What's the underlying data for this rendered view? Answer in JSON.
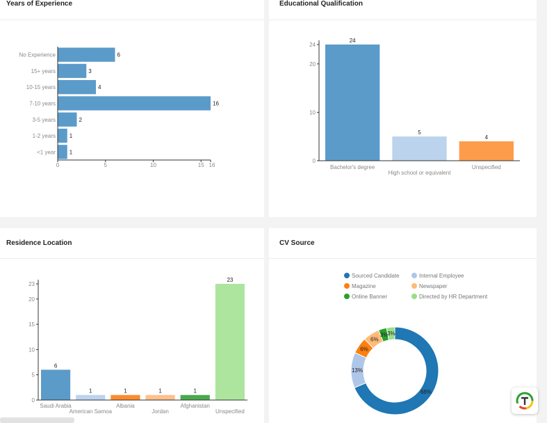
{
  "cards": {
    "experience": {
      "title": "Years of Experience"
    },
    "education": {
      "title": "Educational Qualification"
    },
    "residence": {
      "title": "Residence Location"
    },
    "cvsource": {
      "title": "CV Source"
    }
  },
  "chart_data": [
    {
      "id": "experience",
      "type": "bar",
      "orientation": "horizontal",
      "title": "Years of Experience",
      "categories": [
        "No Experience",
        "15+ years",
        "10-15 years",
        "7-10 years",
        "3-5 years",
        "1-2 years",
        "<1 year"
      ],
      "values": [
        6,
        3,
        4,
        16,
        2,
        1,
        1
      ],
      "value_labels": [
        "6",
        "3",
        "4",
        "16",
        "2",
        "1",
        "1"
      ],
      "xlim": [
        0,
        16
      ],
      "ticks": [
        0,
        5,
        10,
        15,
        16
      ],
      "tick_labels": [
        "0",
        "5",
        "10",
        "15",
        "16"
      ],
      "color": "#5b9bc9"
    },
    {
      "id": "education",
      "type": "bar",
      "title": "Educational Qualification",
      "categories": [
        "Bachelor's degree",
        "High school or equivalent",
        "Unspecified"
      ],
      "values": [
        24,
        5,
        4
      ],
      "value_labels": [
        "24",
        "5",
        "4"
      ],
      "colors": [
        "#5b9bc9",
        "#bcd3ee",
        "#fd9c4a"
      ],
      "ylim": [
        0,
        24
      ],
      "ticks": [
        0,
        10,
        20,
        24
      ],
      "tick_labels": [
        "0",
        "10",
        "20",
        "24"
      ]
    },
    {
      "id": "residence",
      "type": "bar",
      "title": "Residence Location",
      "categories": [
        "Saudi Arabia",
        "American Samoa",
        "Albania",
        "Jordan",
        "Afghanistan",
        "Unspecified"
      ],
      "values": [
        6,
        1,
        1,
        1,
        1,
        23
      ],
      "value_labels": [
        "6",
        "1",
        "1",
        "1",
        "1",
        "23"
      ],
      "colors": [
        "#5b9bc9",
        "#bcd3ee",
        "#fd8b2d",
        "#fdc08e",
        "#4aa94d",
        "#ade59f"
      ],
      "ylim": [
        0,
        23
      ],
      "ticks": [
        0,
        5,
        10,
        15,
        20,
        23
      ],
      "tick_labels": [
        "0",
        "5",
        "10",
        "15",
        "20",
        "23"
      ]
    },
    {
      "id": "cvsource",
      "type": "pie",
      "subtype": "donut",
      "title": "CV Source",
      "labels": [
        "Sourced Candidate",
        "Internal Employee",
        "Magazine",
        "Newspaper",
        "Online Banner",
        "Directed by HR Department"
      ],
      "values": [
        68,
        13,
        6,
        6,
        3,
        3
      ],
      "value_labels": [
        "68%",
        "13%",
        "6%",
        "6%",
        "3%",
        "3%"
      ],
      "colors": [
        "#1f77b4",
        "#aec7e8",
        "#ff7f0e",
        "#ffbb78",
        "#2ca02c",
        "#98df8a"
      ],
      "legend_position": "top"
    }
  ],
  "colors": {
    "axis": "#333333",
    "tick_text": "#888888",
    "value_text": "#222222"
  }
}
